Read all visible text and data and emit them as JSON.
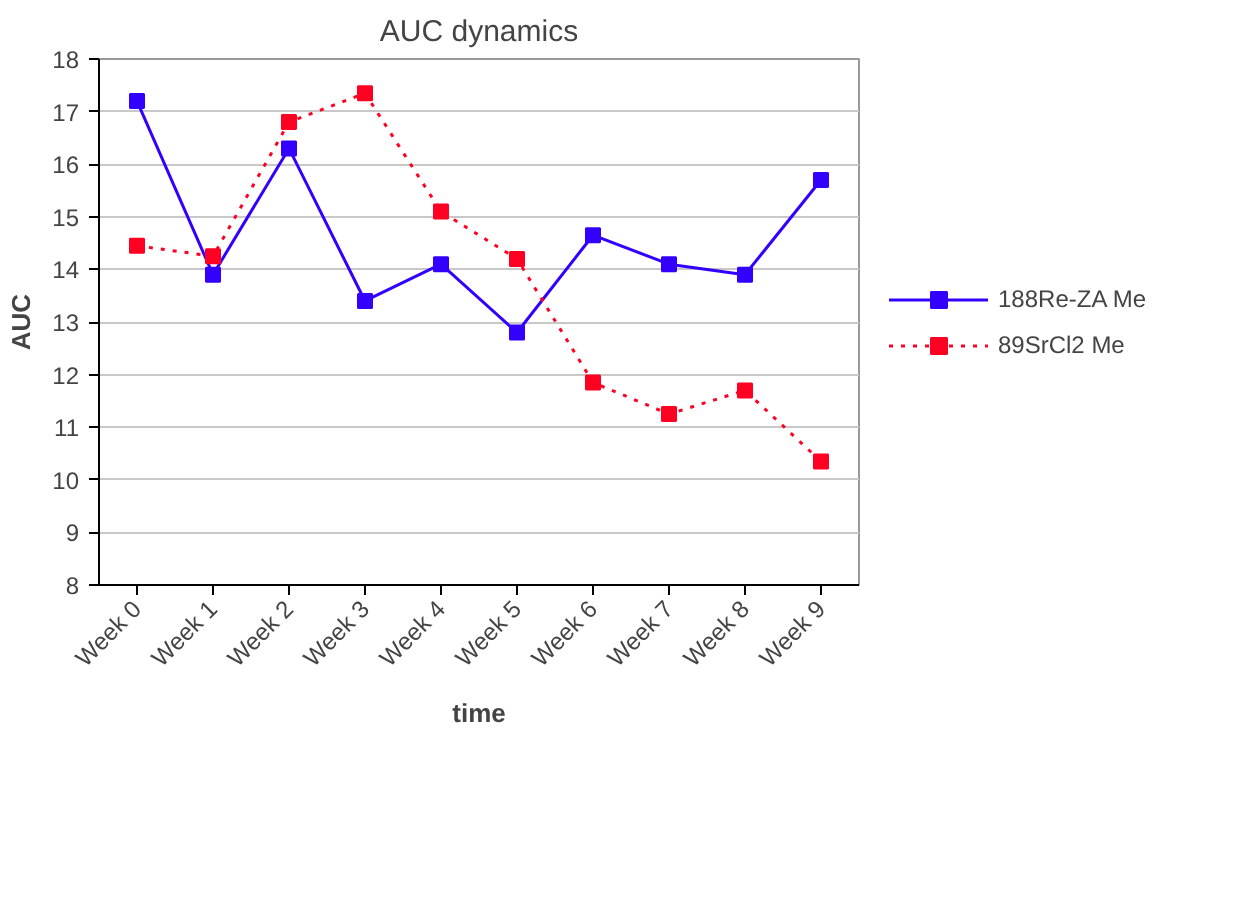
{
  "chart_data": {
    "type": "line",
    "title": "AUC dynamics",
    "xlabel": "time",
    "ylabel": "AUC",
    "categories": [
      "Week 0",
      "Week 1",
      "Week 2",
      "Week 3",
      "Week 4",
      "Week 5",
      "Week 6",
      "Week 7",
      "Week 8",
      "Week 9"
    ],
    "series": [
      {
        "name": "188Re-ZA Me",
        "color": "#3300ff",
        "line_style": "solid",
        "values": [
          17.2,
          13.9,
          16.3,
          13.4,
          14.1,
          12.8,
          14.65,
          14.1,
          13.9,
          15.7
        ]
      },
      {
        "name": "89SrCl2 Me",
        "color": "#ff0022",
        "line_style": "dotted",
        "values": [
          14.45,
          14.25,
          16.8,
          17.35,
          15.1,
          14.2,
          11.85,
          11.25,
          11.7,
          10.35
        ]
      }
    ],
    "ylim": [
      8,
      18
    ],
    "yticks": [
      8,
      9,
      10,
      11,
      12,
      13,
      14,
      15,
      16,
      17,
      18
    ],
    "grid": "y",
    "legend": "right",
    "marker": "square"
  }
}
